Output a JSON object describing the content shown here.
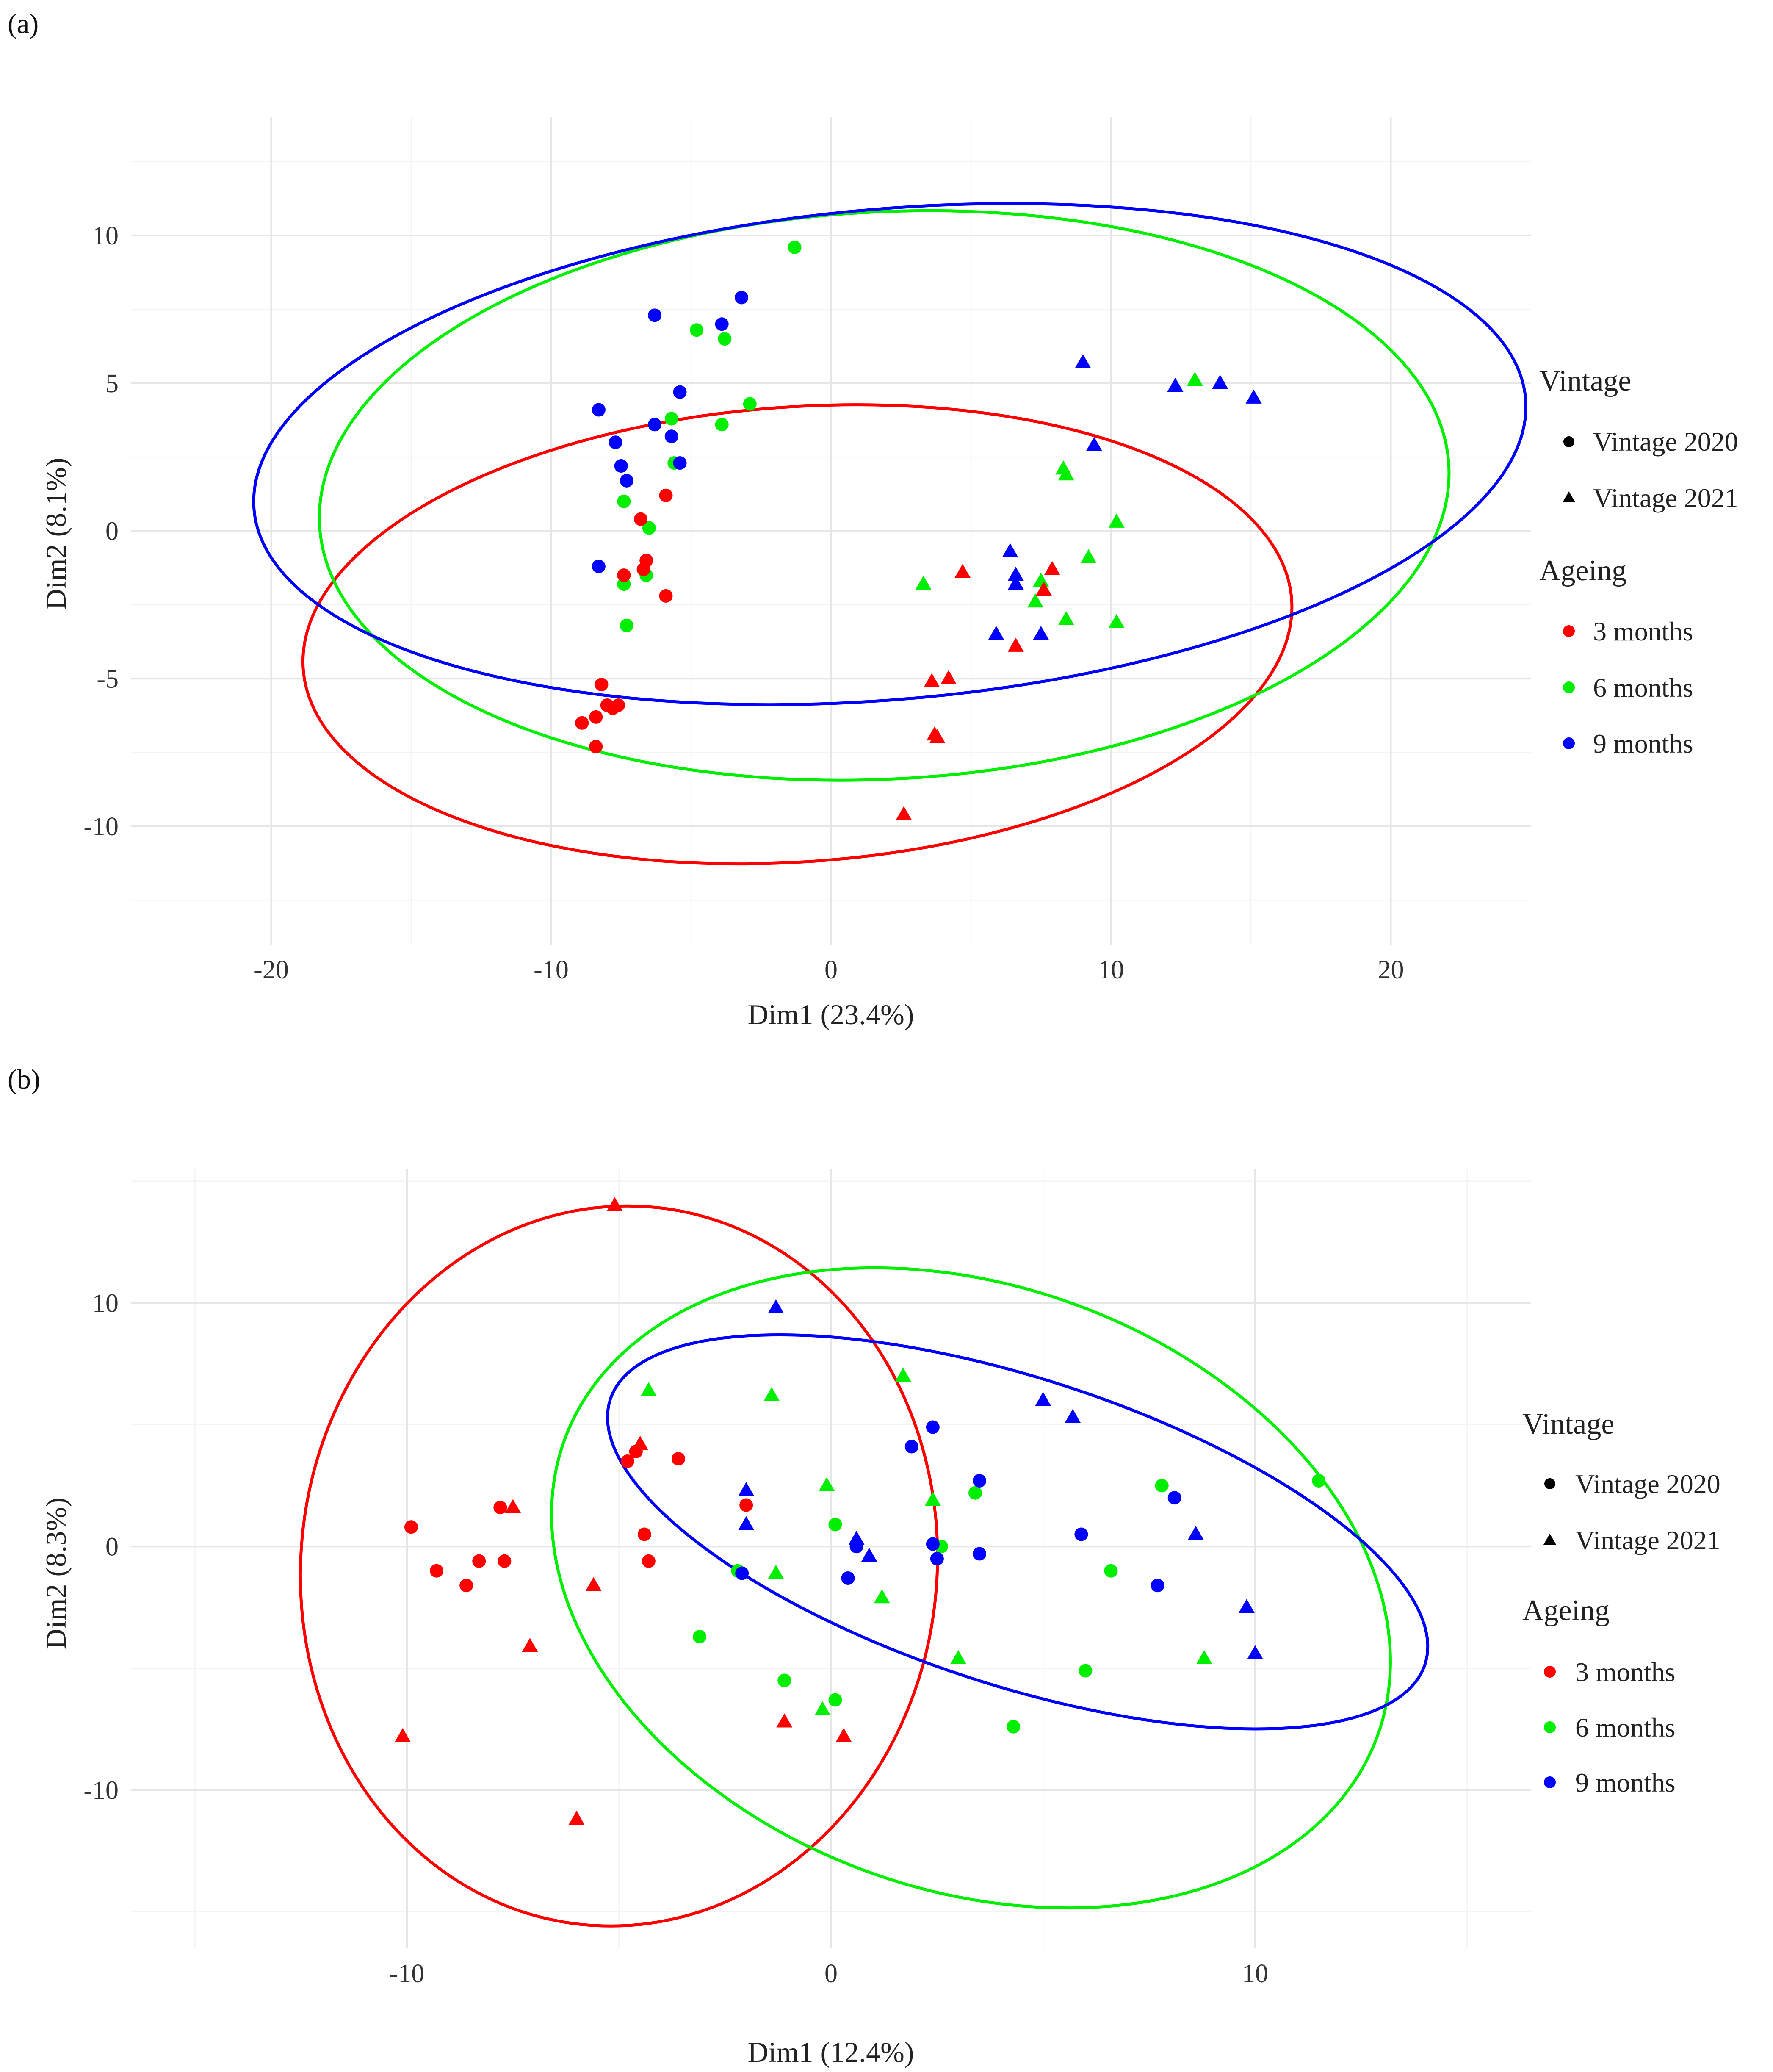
{
  "legend": {
    "vintage_title": "Vintage",
    "vintage_items": [
      {
        "label": "Vintage 2020",
        "shape": "circle"
      },
      {
        "label": "Vintage 2021",
        "shape": "triangle"
      }
    ],
    "ageing_title": "Ageing",
    "ageing_items": [
      {
        "label": "3 months",
        "key": "m3"
      },
      {
        "label": "6 months",
        "key": "m6"
      },
      {
        "label": "9 months",
        "key": "m9"
      }
    ]
  },
  "colors": {
    "m3": "#ff0000",
    "m6": "#00ee00",
    "m9": "#0000ff"
  },
  "chart_data": [
    {
      "panel_label": "(a)",
      "type": "scatter",
      "xlabel": "Dim1 (23.4%)",
      "ylabel": "Dim2 (8.1%)",
      "xlim": [
        -25,
        25
      ],
      "ylim": [
        -14,
        14
      ],
      "xticks": [
        -20,
        -10,
        0,
        10,
        20
      ],
      "yticks": [
        -10,
        -5,
        0,
        5,
        10
      ],
      "xtick_labels": [
        "-20",
        "-10",
        "0",
        "10",
        "20"
      ],
      "ytick_labels": [
        "-10",
        "-5",
        "0",
        "5",
        "10"
      ],
      "ellipses": [
        {
          "group": "m3",
          "center": [
            -1.2,
            -3.5
          ],
          "rx": 17.7,
          "ry": 7.7,
          "angle_deg": 4
        },
        {
          "group": "m6",
          "center": [
            1.9,
            1.2
          ],
          "rx": 20.2,
          "ry": 9.6,
          "angle_deg": 3
        },
        {
          "group": "m9",
          "center": [
            2.1,
            2.6
          ],
          "rx": 22.8,
          "ry": 8.3,
          "angle_deg": 5
        }
      ],
      "points": [
        {
          "x": -1.3,
          "y": 9.6,
          "group": "m6",
          "shape": "circle"
        },
        {
          "x": -4.8,
          "y": 6.8,
          "group": "m6",
          "shape": "circle"
        },
        {
          "x": -3.8,
          "y": 6.5,
          "group": "m6",
          "shape": "circle"
        },
        {
          "x": -2.9,
          "y": 4.3,
          "group": "m6",
          "shape": "circle"
        },
        {
          "x": -5.7,
          "y": 3.8,
          "group": "m6",
          "shape": "circle"
        },
        {
          "x": -3.9,
          "y": 3.6,
          "group": "m6",
          "shape": "circle"
        },
        {
          "x": -5.6,
          "y": 2.3,
          "group": "m6",
          "shape": "circle"
        },
        {
          "x": -7.4,
          "y": 1.0,
          "group": "m6",
          "shape": "circle"
        },
        {
          "x": -6.5,
          "y": 0.1,
          "group": "m6",
          "shape": "circle"
        },
        {
          "x": -6.6,
          "y": -1.5,
          "group": "m6",
          "shape": "circle"
        },
        {
          "x": -7.4,
          "y": -1.8,
          "group": "m6",
          "shape": "circle"
        },
        {
          "x": -7.3,
          "y": -3.2,
          "group": "m6",
          "shape": "circle"
        },
        {
          "x": -3.2,
          "y": 7.9,
          "group": "m9",
          "shape": "circle"
        },
        {
          "x": -6.3,
          "y": 7.3,
          "group": "m9",
          "shape": "circle"
        },
        {
          "x": -3.9,
          "y": 7.0,
          "group": "m9",
          "shape": "circle"
        },
        {
          "x": -5.4,
          "y": 4.7,
          "group": "m9",
          "shape": "circle"
        },
        {
          "x": -8.3,
          "y": 4.1,
          "group": "m9",
          "shape": "circle"
        },
        {
          "x": -6.3,
          "y": 3.6,
          "group": "m9",
          "shape": "circle"
        },
        {
          "x": -5.7,
          "y": 3.2,
          "group": "m9",
          "shape": "circle"
        },
        {
          "x": -7.7,
          "y": 3.0,
          "group": "m9",
          "shape": "circle"
        },
        {
          "x": -5.4,
          "y": 2.3,
          "group": "m9",
          "shape": "circle"
        },
        {
          "x": -7.5,
          "y": 2.2,
          "group": "m9",
          "shape": "circle"
        },
        {
          "x": -7.3,
          "y": 1.7,
          "group": "m9",
          "shape": "circle"
        },
        {
          "x": -8.3,
          "y": -1.2,
          "group": "m9",
          "shape": "circle"
        },
        {
          "x": -5.9,
          "y": 1.2,
          "group": "m3",
          "shape": "circle"
        },
        {
          "x": -6.8,
          "y": 0.4,
          "group": "m3",
          "shape": "circle"
        },
        {
          "x": -6.6,
          "y": -1.0,
          "group": "m3",
          "shape": "circle"
        },
        {
          "x": -6.7,
          "y": -1.3,
          "group": "m3",
          "shape": "circle"
        },
        {
          "x": -7.4,
          "y": -1.5,
          "group": "m3",
          "shape": "circle"
        },
        {
          "x": -5.9,
          "y": -2.2,
          "group": "m3",
          "shape": "circle"
        },
        {
          "x": -8.2,
          "y": -5.2,
          "group": "m3",
          "shape": "circle"
        },
        {
          "x": -8.0,
          "y": -5.9,
          "group": "m3",
          "shape": "circle"
        },
        {
          "x": -7.8,
          "y": -6.0,
          "group": "m3",
          "shape": "circle"
        },
        {
          "x": -7.6,
          "y": -5.9,
          "group": "m3",
          "shape": "circle"
        },
        {
          "x": -8.4,
          "y": -6.3,
          "group": "m3",
          "shape": "circle"
        },
        {
          "x": -8.9,
          "y": -6.5,
          "group": "m3",
          "shape": "circle"
        },
        {
          "x": -8.4,
          "y": -7.3,
          "group": "m3",
          "shape": "circle"
        },
        {
          "x": 9.0,
          "y": 5.7,
          "group": "m9",
          "shape": "triangle"
        },
        {
          "x": 12.3,
          "y": 4.9,
          "group": "m9",
          "shape": "triangle"
        },
        {
          "x": 13.9,
          "y": 5.0,
          "group": "m9",
          "shape": "triangle"
        },
        {
          "x": 15.1,
          "y": 4.5,
          "group": "m9",
          "shape": "triangle"
        },
        {
          "x": 9.4,
          "y": 2.9,
          "group": "m9",
          "shape": "triangle"
        },
        {
          "x": 6.4,
          "y": -0.7,
          "group": "m9",
          "shape": "triangle"
        },
        {
          "x": 6.6,
          "y": -1.5,
          "group": "m9",
          "shape": "triangle"
        },
        {
          "x": 6.6,
          "y": -1.8,
          "group": "m9",
          "shape": "triangle"
        },
        {
          "x": 5.9,
          "y": -3.5,
          "group": "m9",
          "shape": "triangle"
        },
        {
          "x": 7.5,
          "y": -3.5,
          "group": "m9",
          "shape": "triangle"
        },
        {
          "x": 13.0,
          "y": 5.1,
          "group": "m6",
          "shape": "triangle"
        },
        {
          "x": 8.3,
          "y": 2.1,
          "group": "m6",
          "shape": "triangle"
        },
        {
          "x": 8.4,
          "y": 1.9,
          "group": "m6",
          "shape": "triangle"
        },
        {
          "x": 10.2,
          "y": 0.3,
          "group": "m6",
          "shape": "triangle"
        },
        {
          "x": 9.2,
          "y": -0.9,
          "group": "m6",
          "shape": "triangle"
        },
        {
          "x": 7.5,
          "y": -1.7,
          "group": "m6",
          "shape": "triangle"
        },
        {
          "x": 3.3,
          "y": -1.8,
          "group": "m6",
          "shape": "triangle"
        },
        {
          "x": 7.3,
          "y": -2.4,
          "group": "m6",
          "shape": "triangle"
        },
        {
          "x": 8.4,
          "y": -3.0,
          "group": "m6",
          "shape": "triangle"
        },
        {
          "x": 10.2,
          "y": -3.1,
          "group": "m6",
          "shape": "triangle"
        },
        {
          "x": 4.7,
          "y": -1.4,
          "group": "m3",
          "shape": "triangle"
        },
        {
          "x": 7.9,
          "y": -1.3,
          "group": "m3",
          "shape": "triangle"
        },
        {
          "x": 7.6,
          "y": -2.0,
          "group": "m3",
          "shape": "triangle"
        },
        {
          "x": 6.6,
          "y": -3.9,
          "group": "m3",
          "shape": "triangle"
        },
        {
          "x": 3.6,
          "y": -5.1,
          "group": "m3",
          "shape": "triangle"
        },
        {
          "x": 4.2,
          "y": -5.0,
          "group": "m3",
          "shape": "triangle"
        },
        {
          "x": 3.7,
          "y": -6.9,
          "group": "m3",
          "shape": "triangle"
        },
        {
          "x": 3.8,
          "y": -7.0,
          "group": "m3",
          "shape": "triangle"
        },
        {
          "x": 2.6,
          "y": -9.6,
          "group": "m3",
          "shape": "triangle"
        }
      ]
    },
    {
      "panel_label": "(b)",
      "type": "scatter",
      "xlabel": "Dim1 (12.4%)",
      "ylabel": "Dim2 (8.3%)",
      "xlim": [
        -16.5,
        16.5
      ],
      "ylim": [
        -16.5,
        15.5
      ],
      "xticks": [
        -10,
        0,
        10
      ],
      "yticks": [
        -10,
        0,
        10
      ],
      "xtick_labels": [
        "-10",
        "0",
        "10"
      ],
      "ytick_labels": [
        "-10",
        "0",
        "10"
      ],
      "ellipses": [
        {
          "group": "m3",
          "center": [
            -5.0,
            -0.8
          ],
          "rx": 7.5,
          "ry": 14.8,
          "angle_deg": -6
        },
        {
          "group": "m6",
          "center": [
            3.3,
            -1.7
          ],
          "rx": 10.2,
          "ry": 12.4,
          "angle_deg": -20
        },
        {
          "group": "m9",
          "center": [
            4.4,
            0.6
          ],
          "rx": 10.1,
          "ry": 6.3,
          "angle_deg": -18
        }
      ],
      "points": [
        {
          "x": -9.9,
          "y": 0.8,
          "group": "m3",
          "shape": "circle"
        },
        {
          "x": -9.3,
          "y": -1.0,
          "group": "m3",
          "shape": "circle"
        },
        {
          "x": -8.6,
          "y": -1.6,
          "group": "m3",
          "shape": "circle"
        },
        {
          "x": -8.3,
          "y": -0.6,
          "group": "m3",
          "shape": "circle"
        },
        {
          "x": -7.8,
          "y": 1.6,
          "group": "m3",
          "shape": "circle"
        },
        {
          "x": -7.7,
          "y": -0.6,
          "group": "m3",
          "shape": "circle"
        },
        {
          "x": -4.8,
          "y": 3.5,
          "group": "m3",
          "shape": "circle"
        },
        {
          "x": -4.6,
          "y": 3.9,
          "group": "m3",
          "shape": "circle"
        },
        {
          "x": -3.6,
          "y": 3.6,
          "group": "m3",
          "shape": "circle"
        },
        {
          "x": -4.4,
          "y": 0.5,
          "group": "m3",
          "shape": "circle"
        },
        {
          "x": -4.3,
          "y": -0.6,
          "group": "m3",
          "shape": "circle"
        },
        {
          "x": -2.0,
          "y": 1.7,
          "group": "m3",
          "shape": "circle"
        },
        {
          "x": -3.1,
          "y": -3.7,
          "group": "m6",
          "shape": "circle"
        },
        {
          "x": -2.2,
          "y": -1.0,
          "group": "m6",
          "shape": "circle"
        },
        {
          "x": -1.1,
          "y": -5.5,
          "group": "m6",
          "shape": "circle"
        },
        {
          "x": 0.1,
          "y": 0.9,
          "group": "m6",
          "shape": "circle"
        },
        {
          "x": 0.1,
          "y": -6.3,
          "group": "m6",
          "shape": "circle"
        },
        {
          "x": 2.6,
          "y": 0.0,
          "group": "m6",
          "shape": "circle"
        },
        {
          "x": 3.4,
          "y": 2.2,
          "group": "m6",
          "shape": "circle"
        },
        {
          "x": 4.3,
          "y": -7.4,
          "group": "m6",
          "shape": "circle"
        },
        {
          "x": 6.0,
          "y": -5.1,
          "group": "m6",
          "shape": "circle"
        },
        {
          "x": 6.6,
          "y": -1.0,
          "group": "m6",
          "shape": "circle"
        },
        {
          "x": 7.8,
          "y": 2.5,
          "group": "m6",
          "shape": "circle"
        },
        {
          "x": 11.5,
          "y": 2.7,
          "group": "m6",
          "shape": "circle"
        },
        {
          "x": 1.9,
          "y": 4.1,
          "group": "m9",
          "shape": "circle"
        },
        {
          "x": 2.4,
          "y": 4.9,
          "group": "m9",
          "shape": "circle"
        },
        {
          "x": 3.5,
          "y": 2.7,
          "group": "m9",
          "shape": "circle"
        },
        {
          "x": 2.4,
          "y": 0.1,
          "group": "m9",
          "shape": "circle"
        },
        {
          "x": 2.5,
          "y": -0.5,
          "group": "m9",
          "shape": "circle"
        },
        {
          "x": 3.5,
          "y": -0.3,
          "group": "m9",
          "shape": "circle"
        },
        {
          "x": 0.6,
          "y": 0.0,
          "group": "m9",
          "shape": "circle"
        },
        {
          "x": 0.4,
          "y": -1.3,
          "group": "m9",
          "shape": "circle"
        },
        {
          "x": -2.1,
          "y": -1.1,
          "group": "m9",
          "shape": "circle"
        },
        {
          "x": 5.9,
          "y": 0.5,
          "group": "m9",
          "shape": "circle"
        },
        {
          "x": 8.1,
          "y": 2.0,
          "group": "m9",
          "shape": "circle"
        },
        {
          "x": 7.7,
          "y": -1.6,
          "group": "m9",
          "shape": "circle"
        },
        {
          "x": -5.1,
          "y": 14.0,
          "group": "m3",
          "shape": "triangle"
        },
        {
          "x": -4.5,
          "y": 4.2,
          "group": "m3",
          "shape": "triangle"
        },
        {
          "x": -7.5,
          "y": 1.6,
          "group": "m3",
          "shape": "triangle"
        },
        {
          "x": -5.6,
          "y": -1.6,
          "group": "m3",
          "shape": "triangle"
        },
        {
          "x": -7.1,
          "y": -4.1,
          "group": "m3",
          "shape": "triangle"
        },
        {
          "x": -10.1,
          "y": -7.8,
          "group": "m3",
          "shape": "triangle"
        },
        {
          "x": -6.0,
          "y": -11.2,
          "group": "m3",
          "shape": "triangle"
        },
        {
          "x": -1.1,
          "y": -7.2,
          "group": "m3",
          "shape": "triangle"
        },
        {
          "x": 0.3,
          "y": -7.8,
          "group": "m3",
          "shape": "triangle"
        },
        {
          "x": -4.3,
          "y": 6.4,
          "group": "m6",
          "shape": "triangle"
        },
        {
          "x": -1.4,
          "y": 6.2,
          "group": "m6",
          "shape": "triangle"
        },
        {
          "x": 1.7,
          "y": 7.0,
          "group": "m6",
          "shape": "triangle"
        },
        {
          "x": -0.1,
          "y": 2.5,
          "group": "m6",
          "shape": "triangle"
        },
        {
          "x": 2.4,
          "y": 1.9,
          "group": "m6",
          "shape": "triangle"
        },
        {
          "x": -1.3,
          "y": -1.1,
          "group": "m6",
          "shape": "triangle"
        },
        {
          "x": 1.2,
          "y": -2.1,
          "group": "m6",
          "shape": "triangle"
        },
        {
          "x": -0.2,
          "y": -6.7,
          "group": "m6",
          "shape": "triangle"
        },
        {
          "x": 3.0,
          "y": -4.6,
          "group": "m6",
          "shape": "triangle"
        },
        {
          "x": 8.8,
          "y": -4.6,
          "group": "m6",
          "shape": "triangle"
        },
        {
          "x": -1.3,
          "y": 9.8,
          "group": "m9",
          "shape": "triangle"
        },
        {
          "x": -2.0,
          "y": 2.3,
          "group": "m9",
          "shape": "triangle"
        },
        {
          "x": -2.0,
          "y": 0.9,
          "group": "m9",
          "shape": "triangle"
        },
        {
          "x": 0.6,
          "y": 0.3,
          "group": "m9",
          "shape": "triangle"
        },
        {
          "x": 0.9,
          "y": -0.4,
          "group": "m9",
          "shape": "triangle"
        },
        {
          "x": 5.0,
          "y": 6.0,
          "group": "m9",
          "shape": "triangle"
        },
        {
          "x": 5.7,
          "y": 5.3,
          "group": "m9",
          "shape": "triangle"
        },
        {
          "x": 8.6,
          "y": 0.5,
          "group": "m9",
          "shape": "triangle"
        },
        {
          "x": 9.8,
          "y": -2.5,
          "group": "m9",
          "shape": "triangle"
        },
        {
          "x": 10.0,
          "y": -4.4,
          "group": "m9",
          "shape": "triangle"
        }
      ]
    }
  ]
}
